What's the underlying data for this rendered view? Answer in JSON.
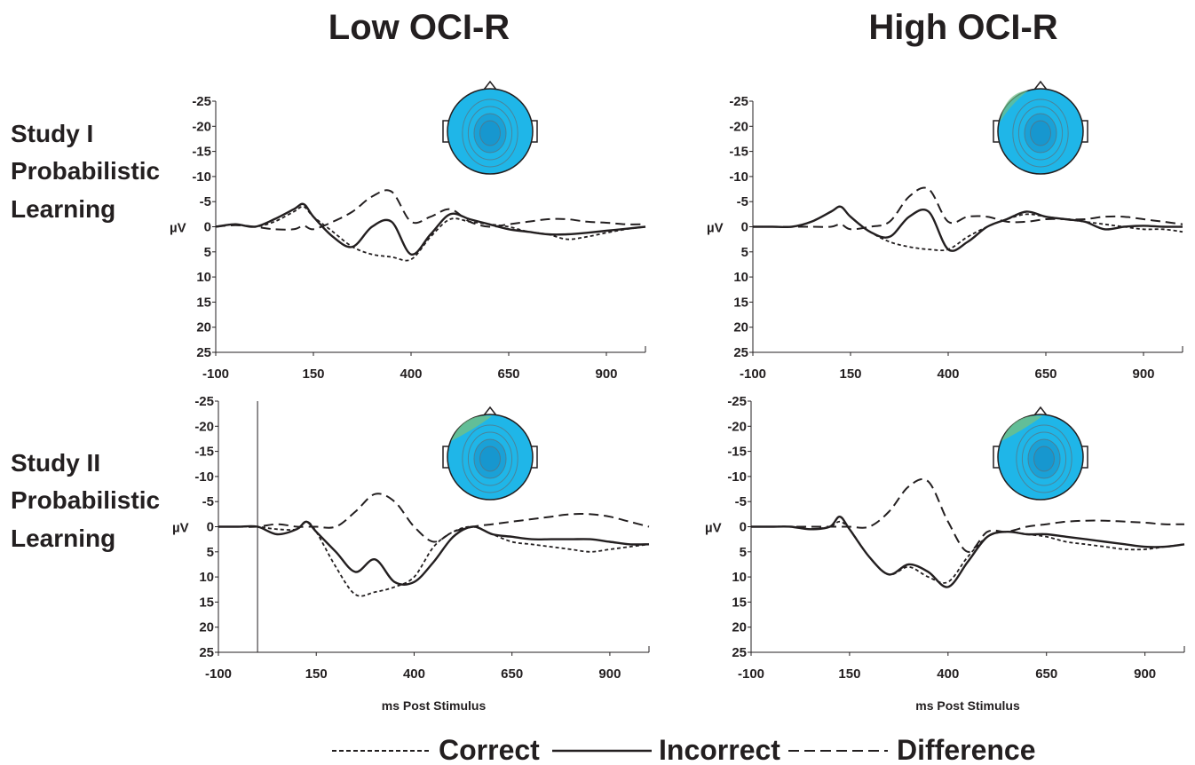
{
  "figure": {
    "column_titles": [
      "Low OCI-R",
      "High OCI-R"
    ],
    "row_titles": [
      [
        "Study I",
        "Probabilistic",
        "Learning"
      ],
      [
        "Study II",
        "Probabilistic",
        "Learning"
      ]
    ],
    "legend": [
      {
        "label": "Correct",
        "style": "short-dash"
      },
      {
        "label": "Incorrect",
        "style": "solid"
      },
      {
        "label": "Difference",
        "style": "long-dash"
      }
    ],
    "colors": {
      "ink": "#231f20",
      "scalp_base": "#1fb6e8",
      "scalp_core": "#1590c8",
      "scalp_green": "#6fbf8a"
    }
  },
  "chart_data": [
    {
      "type": "line",
      "panel": "Study I / Low OCI-R",
      "ylabel": "µV",
      "xlabel": "",
      "xlim": [
        -100,
        1000
      ],
      "ylim": [
        25,
        -25
      ],
      "x_ticks": [
        "-100",
        "150",
        "400",
        "650",
        "900"
      ],
      "y_ticks": [
        "-25",
        "-20",
        "-15",
        "-10",
        "-5",
        "0",
        "5",
        "10",
        "15",
        "20",
        "25"
      ],
      "series": [
        {
          "name": "Correct",
          "x": [
            -100,
            -50,
            0,
            50,
            100,
            125,
            150,
            200,
            250,
            300,
            350,
            400,
            450,
            500,
            550,
            600,
            650,
            700,
            750,
            800,
            850,
            900,
            950,
            1000
          ],
          "values": [
            0,
            -0.5,
            0,
            -1,
            -3,
            -4,
            -2,
            1,
            4,
            5.5,
            6,
            6.5,
            2,
            -1.5,
            -1,
            -0.5,
            0,
            1,
            1.5,
            2.5,
            2,
            1.2,
            0.5,
            0
          ]
        },
        {
          "name": "Incorrect",
          "x": [
            -100,
            -50,
            0,
            50,
            100,
            125,
            150,
            200,
            250,
            300,
            350,
            400,
            450,
            500,
            550,
            600,
            650,
            700,
            750,
            800,
            850,
            900,
            950,
            1000
          ],
          "values": [
            0,
            -0.5,
            0,
            -1.5,
            -3.5,
            -4.5,
            -2,
            2,
            4,
            0,
            -1,
            5.5,
            1.5,
            -2.5,
            -1.5,
            -0.5,
            0.5,
            1,
            1.5,
            1.5,
            1.2,
            0.8,
            0.4,
            0
          ]
        },
        {
          "name": "Difference",
          "x": [
            -100,
            -50,
            0,
            50,
            100,
            125,
            150,
            200,
            250,
            300,
            350,
            400,
            450,
            500,
            550,
            600,
            650,
            700,
            750,
            800,
            850,
            900,
            950,
            1000
          ],
          "values": [
            0,
            -0.3,
            0,
            0.5,
            0.5,
            -0.2,
            0.5,
            -1,
            -3,
            -6,
            -7,
            -1,
            -2,
            -3.5,
            -1,
            0,
            -0.5,
            -1,
            -1.5,
            -1.5,
            -1,
            -0.8,
            -0.5,
            -0.5
          ]
        }
      ],
      "scalp_map": "topography-study1-low"
    },
    {
      "type": "line",
      "panel": "Study I / High OCI-R",
      "ylabel": "µV",
      "xlabel": "",
      "xlim": [
        -100,
        1000
      ],
      "ylim": [
        25,
        -25
      ],
      "x_ticks": [
        "-100",
        "150",
        "400",
        "650",
        "900"
      ],
      "y_ticks": [
        "-25",
        "-20",
        "-15",
        "-10",
        "-5",
        "0",
        "5",
        "10",
        "15",
        "20",
        "25"
      ],
      "series": [
        {
          "name": "Correct",
          "x": [
            -100,
            -50,
            0,
            50,
            100,
            125,
            150,
            200,
            250,
            300,
            350,
            400,
            450,
            500,
            550,
            600,
            650,
            700,
            750,
            800,
            850,
            900,
            950,
            1000
          ],
          "values": [
            0,
            0,
            0,
            -1,
            -3,
            -4,
            -2,
            1,
            3,
            4,
            4.5,
            4.5,
            2,
            0,
            -1.5,
            -2.5,
            -2,
            -1.5,
            -1,
            -0.5,
            0,
            0.5,
            0.5,
            1
          ]
        },
        {
          "name": "Incorrect",
          "x": [
            -100,
            -50,
            0,
            50,
            100,
            125,
            150,
            200,
            250,
            300,
            350,
            400,
            450,
            500,
            550,
            600,
            650,
            700,
            750,
            800,
            850,
            900,
            950,
            1000
          ],
          "values": [
            0,
            0,
            0,
            -1,
            -3,
            -4,
            -2,
            1,
            2,
            -2,
            -3,
            4.5,
            3,
            0,
            -1.5,
            -3,
            -2,
            -1.5,
            -1,
            0.5,
            0,
            -0.2,
            0,
            0
          ]
        },
        {
          "name": "Difference",
          "x": [
            -100,
            -50,
            0,
            50,
            100,
            125,
            150,
            200,
            250,
            300,
            350,
            400,
            450,
            500,
            550,
            600,
            650,
            700,
            750,
            800,
            850,
            900,
            950,
            1000
          ],
          "values": [
            0,
            0,
            0,
            0,
            0,
            -0.5,
            0.5,
            0,
            -1,
            -6,
            -7.5,
            -1,
            -2,
            -2,
            -1,
            -1,
            -1.5,
            -1.5,
            -1.5,
            -2,
            -2,
            -1.5,
            -1,
            -0.5
          ]
        }
      ],
      "scalp_map": "topography-study1-high"
    },
    {
      "type": "line",
      "panel": "Study II / Low OCI-R",
      "ylabel": "µV",
      "xlabel": "ms Post Stimulus",
      "xlim": [
        -100,
        1000
      ],
      "ylim": [
        25,
        -25
      ],
      "x_ticks": [
        "-100",
        "150",
        "400",
        "650",
        "900"
      ],
      "y_ticks": [
        "-25",
        "-20",
        "-15",
        "-10",
        "-5",
        "0",
        "5",
        "10",
        "15",
        "20",
        "25"
      ],
      "series": [
        {
          "name": "Correct",
          "x": [
            -100,
            -50,
            0,
            50,
            100,
            125,
            150,
            200,
            250,
            300,
            350,
            400,
            450,
            500,
            550,
            600,
            650,
            700,
            750,
            800,
            850,
            900,
            950,
            1000
          ],
          "values": [
            0,
            0,
            0,
            0.5,
            0.5,
            -1,
            1,
            8,
            13.5,
            13,
            12,
            10,
            4,
            1,
            0,
            1.5,
            3,
            3.5,
            4,
            4.5,
            5,
            4.5,
            4,
            3.5
          ]
        },
        {
          "name": "Incorrect",
          "x": [
            -100,
            -50,
            0,
            50,
            100,
            125,
            150,
            200,
            250,
            300,
            350,
            400,
            450,
            500,
            550,
            600,
            650,
            700,
            750,
            800,
            850,
            900,
            950,
            1000
          ],
          "values": [
            0,
            0,
            0,
            1.5,
            0.5,
            -1,
            1,
            5,
            9,
            6.5,
            11,
            11,
            7,
            2,
            0,
            1.5,
            2,
            2.5,
            2.5,
            2.5,
            2.5,
            3,
            3.5,
            3.5
          ]
        },
        {
          "name": "Difference",
          "x": [
            -100,
            -50,
            0,
            50,
            100,
            125,
            150,
            200,
            250,
            300,
            350,
            400,
            450,
            500,
            550,
            600,
            650,
            700,
            750,
            800,
            850,
            900,
            950,
            1000
          ],
          "values": [
            0,
            0,
            0,
            -0.5,
            0,
            0,
            0,
            0,
            -3,
            -6.5,
            -5,
            0,
            3,
            1,
            0,
            -0.5,
            -1,
            -1.5,
            -2,
            -2.5,
            -2.5,
            -2,
            -1,
            0
          ]
        }
      ],
      "scalp_map": "topography-study2-low"
    },
    {
      "type": "line",
      "panel": "Study II / High OCI-R",
      "ylabel": "µV",
      "xlabel": "ms Post Stimulus",
      "xlim": [
        -100,
        1000
      ],
      "ylim": [
        25,
        -25
      ],
      "x_ticks": [
        "-100",
        "150",
        "400",
        "650",
        "900"
      ],
      "y_ticks": [
        "-25",
        "-20",
        "-15",
        "-10",
        "-5",
        "0",
        "5",
        "10",
        "15",
        "20",
        "25"
      ],
      "series": [
        {
          "name": "Correct",
          "x": [
            -100,
            -50,
            0,
            50,
            100,
            125,
            150,
            200,
            250,
            300,
            350,
            400,
            450,
            500,
            550,
            600,
            650,
            700,
            750,
            800,
            850,
            900,
            950,
            1000
          ],
          "values": [
            0,
            0,
            0,
            0.5,
            0,
            -1,
            0.5,
            6,
            9.5,
            8,
            10,
            11,
            6,
            2,
            1,
            1.5,
            2,
            3,
            3.5,
            4,
            4.5,
            4.5,
            4,
            3.5
          ]
        },
        {
          "name": "Incorrect",
          "x": [
            -100,
            -50,
            0,
            50,
            100,
            125,
            150,
            200,
            250,
            300,
            350,
            400,
            450,
            500,
            550,
            600,
            650,
            700,
            750,
            800,
            850,
            900,
            950,
            1000
          ],
          "values": [
            0,
            0,
            0,
            0.5,
            0,
            -2,
            0.5,
            6,
            9.5,
            7.5,
            9,
            12,
            7,
            2,
            1,
            1.5,
            1.5,
            2,
            2.5,
            3,
            3.5,
            4,
            4,
            3.5
          ]
        },
        {
          "name": "Difference",
          "x": [
            -100,
            -50,
            0,
            50,
            100,
            125,
            150,
            200,
            250,
            300,
            350,
            400,
            450,
            500,
            550,
            600,
            650,
            700,
            750,
            800,
            850,
            900,
            950,
            1000
          ],
          "values": [
            0,
            0,
            0,
            0,
            0,
            0,
            0,
            0,
            -3,
            -8,
            -9,
            -1,
            5,
            1,
            1,
            0,
            -0.5,
            -1,
            -1.2,
            -1.2,
            -1,
            -0.8,
            -0.5,
            -0.5
          ]
        }
      ],
      "scalp_map": "topography-study2-high"
    }
  ]
}
